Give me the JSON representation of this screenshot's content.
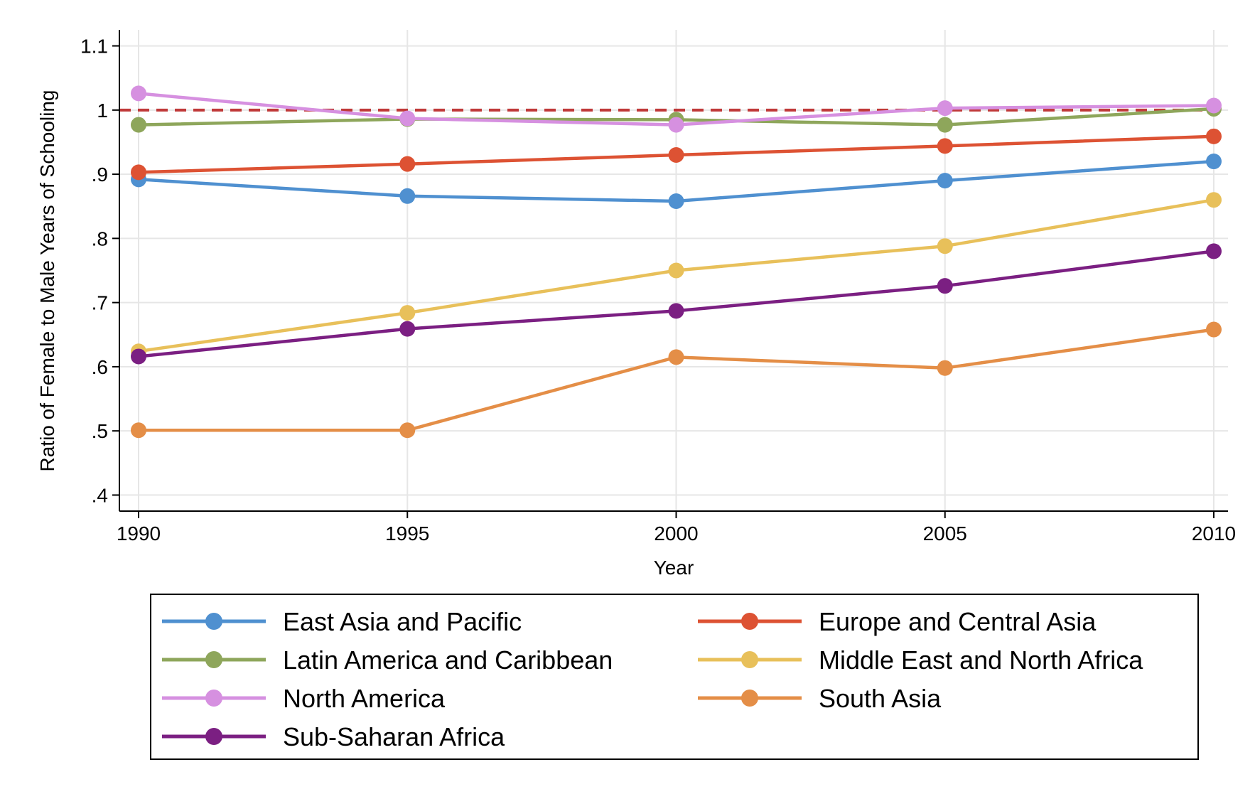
{
  "chart_data": {
    "type": "line",
    "title": "",
    "xlabel": "Year",
    "ylabel": "Ratio of Female to Male Years of Schooling",
    "x": [
      1990,
      1995,
      2000,
      2005,
      2010
    ],
    "xlim": [
      1990,
      2010
    ],
    "ylim": [
      0.375,
      1.125
    ],
    "x_ticks": [
      1990,
      1995,
      2000,
      2005,
      2010
    ],
    "x_tick_labels": [
      "1990",
      "1995",
      "2000",
      "2005",
      "2010"
    ],
    "y_ticks": [
      0.4,
      0.5,
      0.6,
      0.7,
      0.8,
      0.9,
      1.0,
      1.1
    ],
    "y_tick_labels": [
      ".4",
      ".5",
      ".6",
      ".7",
      ".8",
      ".9",
      "1",
      "1.1"
    ],
    "grid": true,
    "legend_position": "bottom",
    "reference_line": {
      "y": 1.0,
      "style": "dashed",
      "color": "#c03a3a"
    },
    "series": [
      {
        "name": "East Asia and Pacific",
        "color": "#4f90d0",
        "values": [
          0.892,
          0.866,
          0.858,
          0.89,
          0.92
        ]
      },
      {
        "name": "Europe and Central Asia",
        "color": "#dd5233",
        "values": [
          0.903,
          0.916,
          0.93,
          0.944,
          0.959
        ]
      },
      {
        "name": "Latin America and Caribbean",
        "color": "#8ea65b",
        "values": [
          0.977,
          0.986,
          0.985,
          0.977,
          1.002
        ]
      },
      {
        "name": "Middle East and North Africa",
        "color": "#e8c05a",
        "values": [
          0.624,
          0.684,
          0.75,
          0.788,
          0.86
        ]
      },
      {
        "name": "North America",
        "color": "#d690e0",
        "values": [
          1.026,
          0.987,
          0.977,
          1.003,
          1.007
        ]
      },
      {
        "name": "South Asia",
        "color": "#e48e47",
        "values": [
          0.501,
          0.501,
          0.615,
          0.598,
          0.658
        ]
      },
      {
        "name": "Sub-Saharan Africa",
        "color": "#7b1f82",
        "values": [
          0.616,
          0.659,
          0.687,
          0.726,
          0.78
        ]
      }
    ]
  }
}
